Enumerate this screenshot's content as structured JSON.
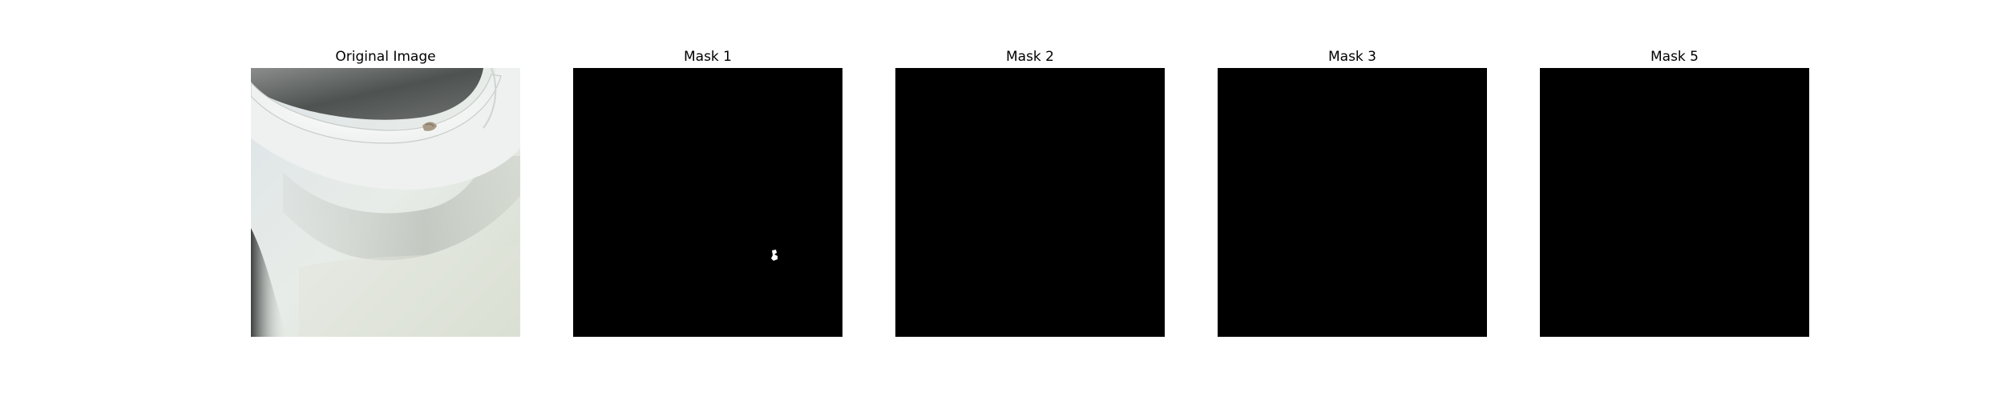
{
  "panels": [
    {
      "title": "Original Image",
      "kind": "photo",
      "subject": "close-up of a white ceramic cup rim with a small chip"
    },
    {
      "title": "Mask 1",
      "kind": "mask",
      "mask_colors": {
        "background": "#000000",
        "foreground": "#ffffff"
      },
      "has_foreground": true
    },
    {
      "title": "Mask 2",
      "kind": "mask",
      "mask_colors": {
        "background": "#000000",
        "foreground": "#ffffff"
      },
      "has_foreground": false
    },
    {
      "title": "Mask 3",
      "kind": "mask",
      "mask_colors": {
        "background": "#000000",
        "foreground": "#ffffff"
      },
      "has_foreground": false
    },
    {
      "title": "Mask 5",
      "kind": "mask",
      "mask_colors": {
        "background": "#000000",
        "foreground": "#ffffff"
      },
      "has_foreground": false
    }
  ]
}
